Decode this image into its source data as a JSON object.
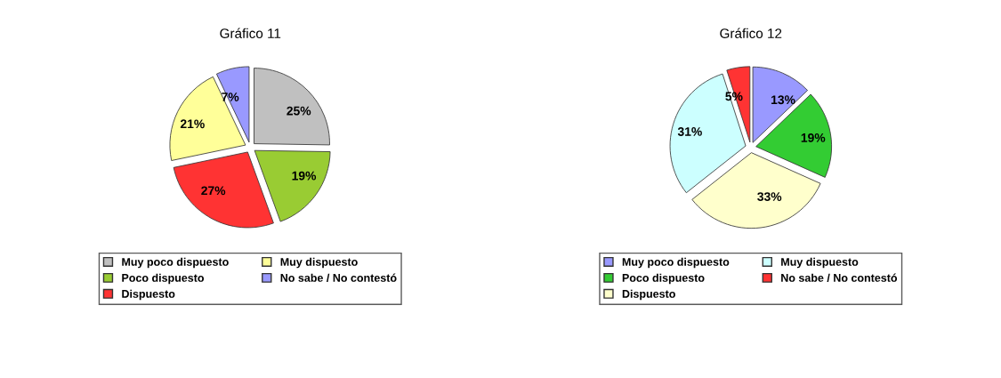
{
  "chart_data": [
    {
      "type": "pie",
      "title": "Gráfico 11",
      "categories": [
        "Muy poco dispuesto",
        "Poco dispuesto",
        "Dispuesto",
        "Muy dispuesto",
        "No sabe / No contestó"
      ],
      "values": [
        25,
        19,
        27,
        21,
        7
      ],
      "value_labels": [
        "25%",
        "19%",
        "27%",
        "21%",
        "7%"
      ],
      "colors": [
        "#c0c0c0",
        "#99cc33",
        "#ff3333",
        "#ffff99",
        "#9999ff"
      ],
      "legend": "bottom"
    },
    {
      "type": "pie",
      "title": "Gráfico 12",
      "categories": [
        "Muy poco dispuesto",
        "Poco dispuesto",
        "Dispuesto",
        "Muy dispuesto",
        "No sabe / No contestó"
      ],
      "values": [
        13,
        19,
        33,
        31,
        5
      ],
      "value_labels": [
        "13%",
        "19%",
        "33%",
        "31%",
        "5%"
      ],
      "colors": [
        "#9999ff",
        "#33cc33",
        "#ffffcc",
        "#ccffff",
        "#ff3333"
      ],
      "legend": "bottom"
    }
  ]
}
